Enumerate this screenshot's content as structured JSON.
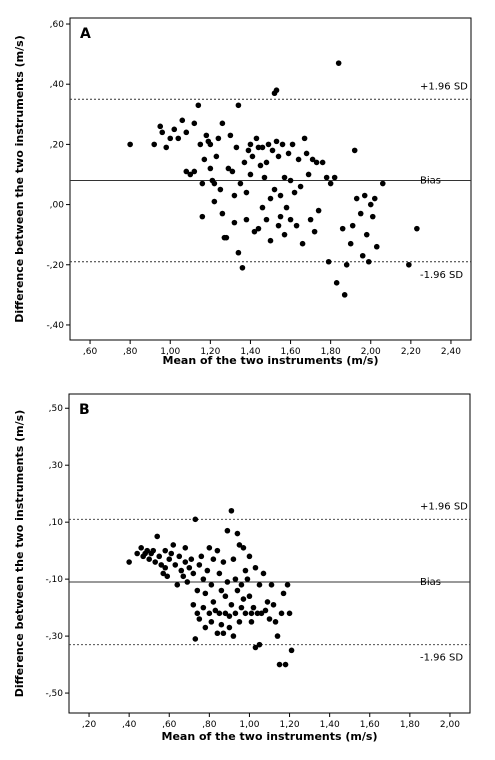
{
  "chart_data": [
    {
      "type": "scatter",
      "panel_label": "A",
      "xlabel": "Mean of the two instruments (m/s)",
      "ylabel": "Difference between the two instruments (m/s)",
      "xlim": [
        0.5,
        2.5
      ],
      "ylim": [
        -0.45,
        0.62
      ],
      "x_ticks": [
        0.6,
        0.8,
        1.0,
        1.2,
        1.4,
        1.6,
        1.8,
        2.0,
        2.2,
        2.4
      ],
      "x_tick_labels": [
        ",60",
        ",80",
        "1,00",
        "1,20",
        "1,40",
        "1,60",
        "1,80",
        "2,00",
        "2,20",
        "2,40"
      ],
      "y_ticks": [
        0.6,
        0.4,
        0.2,
        0.0,
        -0.2,
        -0.4
      ],
      "y_tick_labels": [
        ",60",
        ",40",
        ",20",
        ",00",
        "-,20",
        "-,40"
      ],
      "grid": false,
      "reference_lines": [
        {
          "label": "+1.96 SD",
          "value": 0.35,
          "style": "dashed"
        },
        {
          "label": "Bias",
          "value": 0.08,
          "style": "solid"
        },
        {
          "label": "-1.96 SD",
          "value": -0.19,
          "style": "dashed"
        }
      ],
      "points": [
        [
          0.8,
          0.2
        ],
        [
          0.92,
          0.2
        ],
        [
          0.95,
          0.26
        ],
        [
          0.96,
          0.24
        ],
        [
          0.98,
          0.19
        ],
        [
          1.0,
          0.22
        ],
        [
          1.02,
          0.25
        ],
        [
          1.04,
          0.22
        ],
        [
          1.06,
          0.28
        ],
        [
          1.08,
          0.11
        ],
        [
          1.08,
          0.24
        ],
        [
          1.1,
          0.1
        ],
        [
          1.12,
          0.27
        ],
        [
          1.12,
          0.11
        ],
        [
          1.14,
          0.33
        ],
        [
          1.15,
          0.2
        ],
        [
          1.16,
          0.07
        ],
        [
          1.16,
          -0.04
        ],
        [
          1.17,
          0.15
        ],
        [
          1.18,
          0.23
        ],
        [
          1.19,
          0.21
        ],
        [
          1.2,
          0.12
        ],
        [
          1.2,
          0.2
        ],
        [
          1.21,
          0.08
        ],
        [
          1.22,
          0.01
        ],
        [
          1.22,
          0.07
        ],
        [
          1.23,
          0.16
        ],
        [
          1.24,
          0.22
        ],
        [
          1.25,
          0.05
        ],
        [
          1.26,
          0.27
        ],
        [
          1.26,
          -0.03
        ],
        [
          1.27,
          -0.11
        ],
        [
          1.28,
          -0.11
        ],
        [
          1.29,
          0.12
        ],
        [
          1.3,
          0.23
        ],
        [
          1.31,
          0.11
        ],
        [
          1.32,
          0.03
        ],
        [
          1.32,
          -0.06
        ],
        [
          1.33,
          0.19
        ],
        [
          1.34,
          0.33
        ],
        [
          1.34,
          -0.16
        ],
        [
          1.35,
          0.07
        ],
        [
          1.36,
          -0.21
        ],
        [
          1.37,
          0.14
        ],
        [
          1.38,
          0.04
        ],
        [
          1.38,
          -0.05
        ],
        [
          1.39,
          0.18
        ],
        [
          1.4,
          0.1
        ],
        [
          1.4,
          0.2
        ],
        [
          1.41,
          0.16
        ],
        [
          1.42,
          -0.09
        ],
        [
          1.43,
          0.22
        ],
        [
          1.44,
          0.19
        ],
        [
          1.44,
          -0.08
        ],
        [
          1.45,
          0.13
        ],
        [
          1.46,
          -0.01
        ],
        [
          1.46,
          0.19
        ],
        [
          1.47,
          0.09
        ],
        [
          1.48,
          -0.05
        ],
        [
          1.48,
          0.14
        ],
        [
          1.49,
          0.2
        ],
        [
          1.5,
          0.02
        ],
        [
          1.5,
          -0.12
        ],
        [
          1.51,
          0.18
        ],
        [
          1.52,
          0.37
        ],
        [
          1.52,
          0.05
        ],
        [
          1.53,
          0.38
        ],
        [
          1.53,
          0.21
        ],
        [
          1.54,
          -0.07
        ],
        [
          1.54,
          0.16
        ],
        [
          1.55,
          0.03
        ],
        [
          1.55,
          -0.04
        ],
        [
          1.56,
          0.2
        ],
        [
          1.57,
          0.09
        ],
        [
          1.57,
          -0.1
        ],
        [
          1.58,
          -0.01
        ],
        [
          1.59,
          0.17
        ],
        [
          1.6,
          0.08
        ],
        [
          1.6,
          -0.05
        ],
        [
          1.61,
          0.2
        ],
        [
          1.62,
          0.04
        ],
        [
          1.63,
          -0.07
        ],
        [
          1.64,
          0.15
        ],
        [
          1.65,
          0.06
        ],
        [
          1.66,
          -0.13
        ],
        [
          1.67,
          0.22
        ],
        [
          1.68,
          0.17
        ],
        [
          1.69,
          0.1
        ],
        [
          1.7,
          -0.05
        ],
        [
          1.71,
          0.15
        ],
        [
          1.72,
          -0.09
        ],
        [
          1.73,
          0.14
        ],
        [
          1.74,
          -0.02
        ],
        [
          1.76,
          0.14
        ],
        [
          1.78,
          0.09
        ],
        [
          1.79,
          -0.19
        ],
        [
          1.8,
          0.07
        ],
        [
          1.82,
          0.09
        ],
        [
          1.83,
          -0.26
        ],
        [
          1.84,
          0.47
        ],
        [
          1.86,
          -0.08
        ],
        [
          1.87,
          -0.3
        ],
        [
          1.88,
          -0.2
        ],
        [
          1.9,
          -0.13
        ],
        [
          1.91,
          -0.07
        ],
        [
          1.92,
          0.18
        ],
        [
          1.93,
          0.02
        ],
        [
          1.95,
          -0.03
        ],
        [
          1.96,
          -0.17
        ],
        [
          1.97,
          0.03
        ],
        [
          1.98,
          -0.1
        ],
        [
          1.99,
          -0.19
        ],
        [
          2.0,
          0.0
        ],
        [
          2.01,
          -0.04
        ],
        [
          2.02,
          0.02
        ],
        [
          2.03,
          -0.14
        ],
        [
          2.06,
          0.07
        ],
        [
          2.19,
          -0.2
        ],
        [
          2.23,
          -0.08
        ]
      ]
    },
    {
      "type": "scatter",
      "panel_label": "B",
      "xlabel": "Mean of the two instruments (m/s)",
      "ylabel": "Difference between the two instruments (m/s)",
      "xlim": [
        0.1,
        2.1
      ],
      "ylim": [
        -0.57,
        0.55
      ],
      "x_ticks": [
        0.2,
        0.4,
        0.6,
        0.8,
        1.0,
        1.2,
        1.4,
        1.6,
        1.8,
        2.0
      ],
      "x_tick_labels": [
        ",20",
        ",40",
        ",60",
        ",80",
        "1,00",
        "1,20",
        "1,40",
        "1,60",
        "1,80",
        "2,00"
      ],
      "y_ticks": [
        0.5,
        0.3,
        0.1,
        -0.1,
        -0.3,
        -0.5
      ],
      "y_tick_labels": [
        ",50",
        ",30",
        ",10",
        "-,10",
        "-,30",
        "-,50"
      ],
      "grid": false,
      "reference_lines": [
        {
          "label": "+1.96 SD",
          "value": 0.11,
          "style": "dashed"
        },
        {
          "label": "Bias",
          "value": -0.11,
          "style": "solid"
        },
        {
          "label": "-1.96 SD",
          "value": -0.33,
          "style": "dashed"
        }
      ],
      "points": [
        [
          0.4,
          -0.04
        ],
        [
          0.44,
          -0.01
        ],
        [
          0.46,
          0.01
        ],
        [
          0.47,
          -0.02
        ],
        [
          0.48,
          -0.01
        ],
        [
          0.49,
          0.0
        ],
        [
          0.5,
          -0.03
        ],
        [
          0.51,
          -0.01
        ],
        [
          0.52,
          0.0
        ],
        [
          0.53,
          -0.04
        ],
        [
          0.54,
          0.05
        ],
        [
          0.55,
          -0.02
        ],
        [
          0.56,
          -0.05
        ],
        [
          0.57,
          -0.08
        ],
        [
          0.58,
          0.0
        ],
        [
          0.58,
          -0.06
        ],
        [
          0.59,
          -0.09
        ],
        [
          0.6,
          -0.03
        ],
        [
          0.61,
          -0.01
        ],
        [
          0.62,
          0.02
        ],
        [
          0.63,
          -0.05
        ],
        [
          0.64,
          -0.12
        ],
        [
          0.65,
          -0.02
        ],
        [
          0.66,
          -0.07
        ],
        [
          0.67,
          -0.09
        ],
        [
          0.68,
          0.01
        ],
        [
          0.68,
          -0.04
        ],
        [
          0.69,
          -0.11
        ],
        [
          0.7,
          -0.06
        ],
        [
          0.71,
          -0.03
        ],
        [
          0.72,
          -0.08
        ],
        [
          0.72,
          -0.19
        ],
        [
          0.73,
          0.11
        ],
        [
          0.73,
          -0.31
        ],
        [
          0.74,
          -0.14
        ],
        [
          0.74,
          -0.22
        ],
        [
          0.75,
          -0.05
        ],
        [
          0.75,
          -0.24
        ],
        [
          0.76,
          -0.02
        ],
        [
          0.77,
          -0.1
        ],
        [
          0.77,
          -0.2
        ],
        [
          0.78,
          -0.27
        ],
        [
          0.78,
          -0.15
        ],
        [
          0.79,
          -0.07
        ],
        [
          0.8,
          0.01
        ],
        [
          0.8,
          -0.22
        ],
        [
          0.81,
          -0.12
        ],
        [
          0.81,
          -0.25
        ],
        [
          0.82,
          -0.18
        ],
        [
          0.82,
          -0.03
        ],
        [
          0.83,
          -0.21
        ],
        [
          0.84,
          0.0
        ],
        [
          0.84,
          -0.29
        ],
        [
          0.85,
          -0.08
        ],
        [
          0.85,
          -0.22
        ],
        [
          0.86,
          -0.14
        ],
        [
          0.86,
          -0.26
        ],
        [
          0.87,
          -0.04
        ],
        [
          0.87,
          -0.29
        ],
        [
          0.88,
          -0.16
        ],
        [
          0.88,
          -0.22
        ],
        [
          0.89,
          -0.11
        ],
        [
          0.89,
          0.07
        ],
        [
          0.9,
          -0.23
        ],
        [
          0.9,
          -0.27
        ],
        [
          0.91,
          0.14
        ],
        [
          0.91,
          -0.19
        ],
        [
          0.92,
          -0.03
        ],
        [
          0.92,
          -0.3
        ],
        [
          0.93,
          -0.1
        ],
        [
          0.93,
          -0.22
        ],
        [
          0.94,
          0.06
        ],
        [
          0.94,
          -0.14
        ],
        [
          0.95,
          0.02
        ],
        [
          0.95,
          -0.25
        ],
        [
          0.96,
          -0.12
        ],
        [
          0.96,
          -0.2
        ],
        [
          0.97,
          -0.17
        ],
        [
          0.97,
          0.01
        ],
        [
          0.98,
          -0.07
        ],
        [
          0.98,
          -0.22
        ],
        [
          0.99,
          -0.1
        ],
        [
          1.0,
          -0.02
        ],
        [
          1.0,
          -0.16
        ],
        [
          1.01,
          -0.22
        ],
        [
          1.01,
          -0.25
        ],
        [
          1.02,
          -0.2
        ],
        [
          1.03,
          -0.34
        ],
        [
          1.03,
          -0.06
        ],
        [
          1.04,
          -0.22
        ],
        [
          1.05,
          -0.12
        ],
        [
          1.05,
          -0.33
        ],
        [
          1.06,
          -0.22
        ],
        [
          1.07,
          -0.08
        ],
        [
          1.08,
          -0.21
        ],
        [
          1.09,
          -0.18
        ],
        [
          1.1,
          -0.24
        ],
        [
          1.11,
          -0.12
        ],
        [
          1.12,
          -0.19
        ],
        [
          1.13,
          -0.25
        ],
        [
          1.14,
          -0.3
        ],
        [
          1.15,
          -0.4
        ],
        [
          1.16,
          -0.22
        ],
        [
          1.17,
          -0.15
        ],
        [
          1.18,
          -0.4
        ],
        [
          1.19,
          -0.12
        ],
        [
          1.2,
          -0.22
        ],
        [
          1.21,
          -0.35
        ]
      ]
    }
  ]
}
